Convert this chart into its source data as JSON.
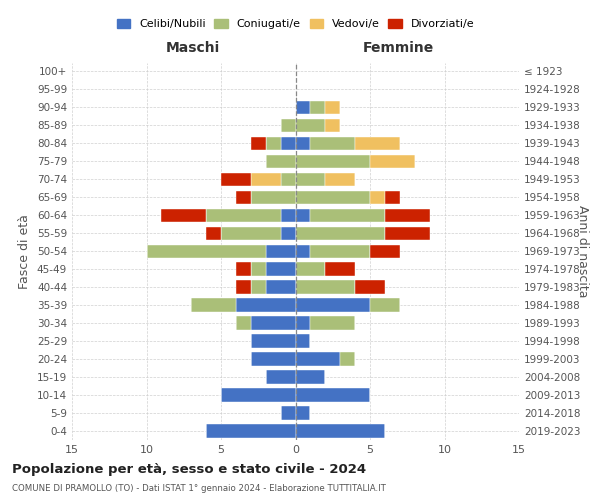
{
  "age_groups": [
    "100+",
    "95-99",
    "90-94",
    "85-89",
    "80-84",
    "75-79",
    "70-74",
    "65-69",
    "60-64",
    "55-59",
    "50-54",
    "45-49",
    "40-44",
    "35-39",
    "30-34",
    "25-29",
    "20-24",
    "15-19",
    "10-14",
    "5-9",
    "0-4"
  ],
  "birth_years": [
    "≤ 1923",
    "1924-1928",
    "1929-1933",
    "1934-1938",
    "1939-1943",
    "1944-1948",
    "1949-1953",
    "1954-1958",
    "1959-1963",
    "1964-1968",
    "1969-1973",
    "1974-1978",
    "1979-1983",
    "1984-1988",
    "1989-1993",
    "1994-1998",
    "1999-2003",
    "2004-2008",
    "2009-2013",
    "2014-2018",
    "2019-2023"
  ],
  "colors": {
    "celibi": "#4472C4",
    "coniugati": "#AABF78",
    "vedovi": "#F0C060",
    "divorziati": "#CC2200"
  },
  "maschi": {
    "celibi": [
      0,
      0,
      0,
      0,
      1,
      0,
      0,
      0,
      1,
      1,
      2,
      2,
      2,
      4,
      3,
      3,
      3,
      2,
      5,
      1,
      6
    ],
    "coniugati": [
      0,
      0,
      0,
      1,
      1,
      2,
      1,
      3,
      5,
      4,
      8,
      1,
      1,
      3,
      1,
      0,
      0,
      0,
      0,
      0,
      0
    ],
    "vedovi": [
      0,
      0,
      0,
      0,
      0,
      0,
      2,
      0,
      0,
      0,
      0,
      0,
      0,
      0,
      0,
      0,
      0,
      0,
      0,
      0,
      0
    ],
    "divorziati": [
      0,
      0,
      0,
      0,
      1,
      0,
      2,
      1,
      3,
      1,
      0,
      1,
      1,
      0,
      0,
      0,
      0,
      0,
      0,
      0,
      0
    ]
  },
  "femmine": {
    "celibi": [
      0,
      0,
      1,
      0,
      1,
      0,
      0,
      0,
      1,
      0,
      1,
      0,
      0,
      5,
      1,
      1,
      3,
      2,
      5,
      1,
      6
    ],
    "coniugati": [
      0,
      0,
      1,
      2,
      3,
      5,
      2,
      5,
      5,
      6,
      4,
      2,
      4,
      2,
      3,
      0,
      1,
      0,
      0,
      0,
      0
    ],
    "vedovi": [
      0,
      0,
      1,
      1,
      3,
      3,
      2,
      1,
      0,
      0,
      0,
      0,
      0,
      0,
      0,
      0,
      0,
      0,
      0,
      0,
      0
    ],
    "divorziati": [
      0,
      0,
      0,
      0,
      0,
      0,
      0,
      1,
      3,
      3,
      2,
      2,
      2,
      0,
      0,
      0,
      0,
      0,
      0,
      0,
      0
    ]
  },
  "title": "Popolazione per età, sesso e stato civile - 2024",
  "subtitle": "COMUNE DI PRAMOLLO (TO) - Dati ISTAT 1° gennaio 2024 - Elaborazione TUTTITALIA.IT",
  "xlabel_left": "Maschi",
  "xlabel_right": "Femmine",
  "ylabel_left": "Fasce di età",
  "ylabel_right": "Anni di nascita",
  "xlim": 15,
  "legend_labels": [
    "Celibi/Nubili",
    "Coniugati/e",
    "Vedovi/e",
    "Divorziati/e"
  ],
  "background_color": "#ffffff",
  "grid_color": "#cccccc"
}
